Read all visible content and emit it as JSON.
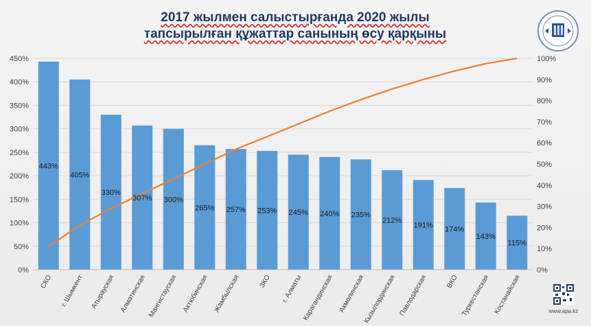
{
  "title": {
    "line1": "2017 жылмен салыстырғанда 2020 жылы",
    "line2": "тапсырылған құжаттар санының өсу қарқыны"
  },
  "logo": {
    "icon": "government-emblem-icon"
  },
  "footer": {
    "site": "www.apa.kz",
    "qr_icon": "qr-code-icon"
  },
  "colors": {
    "bar": "#5b9bd5",
    "line": "#ed7d31",
    "title": "#1f3864",
    "grid": "#d9d9d9"
  },
  "chart_data": {
    "type": "bar",
    "categories": [
      "СКО",
      "г. Шымкент",
      "Атырауская",
      "Алматинская",
      "Мангистауская",
      "Актюбинская",
      "Жамбылская",
      "ЗКО",
      "г. Алматы",
      "Карагандинская",
      "Акмолинская",
      "Кызылординская",
      "Павлодарская",
      "ВКО",
      "Туркестанская",
      "Костанайская"
    ],
    "series": [
      {
        "values": [
          443,
          405,
          330,
          307,
          300,
          265,
          257,
          253,
          245,
          240,
          235,
          212,
          191,
          174,
          143,
          115
        ],
        "data_labels": [
          "443%",
          "405%",
          "330%",
          "307%",
          "300%",
          "265%",
          "257%",
          "253%",
          "245%",
          "240%",
          "235%",
          "212%",
          "191%",
          "174%",
          "143%",
          "115%"
        ],
        "axis": "left"
      },
      {
        "type": "line",
        "axis": "right",
        "values": [
          11,
          21,
          29,
          36,
          43,
          50,
          57,
          63,
          69,
          75,
          80.5,
          85.5,
          90,
          94,
          97.5,
          100
        ]
      }
    ],
    "y_left": {
      "range": [
        0,
        450
      ],
      "ticks": [
        "0%",
        "50%",
        "100%",
        "150%",
        "200%",
        "250%",
        "300%",
        "350%",
        "400%",
        "450%"
      ]
    },
    "y_right": {
      "range": [
        0,
        100
      ],
      "ticks": [
        "0%",
        "10%",
        "20%",
        "30%",
        "40%",
        "50%",
        "60%",
        "70%",
        "80%",
        "90%",
        "100%"
      ]
    },
    "grid": true,
    "legend": "none"
  }
}
